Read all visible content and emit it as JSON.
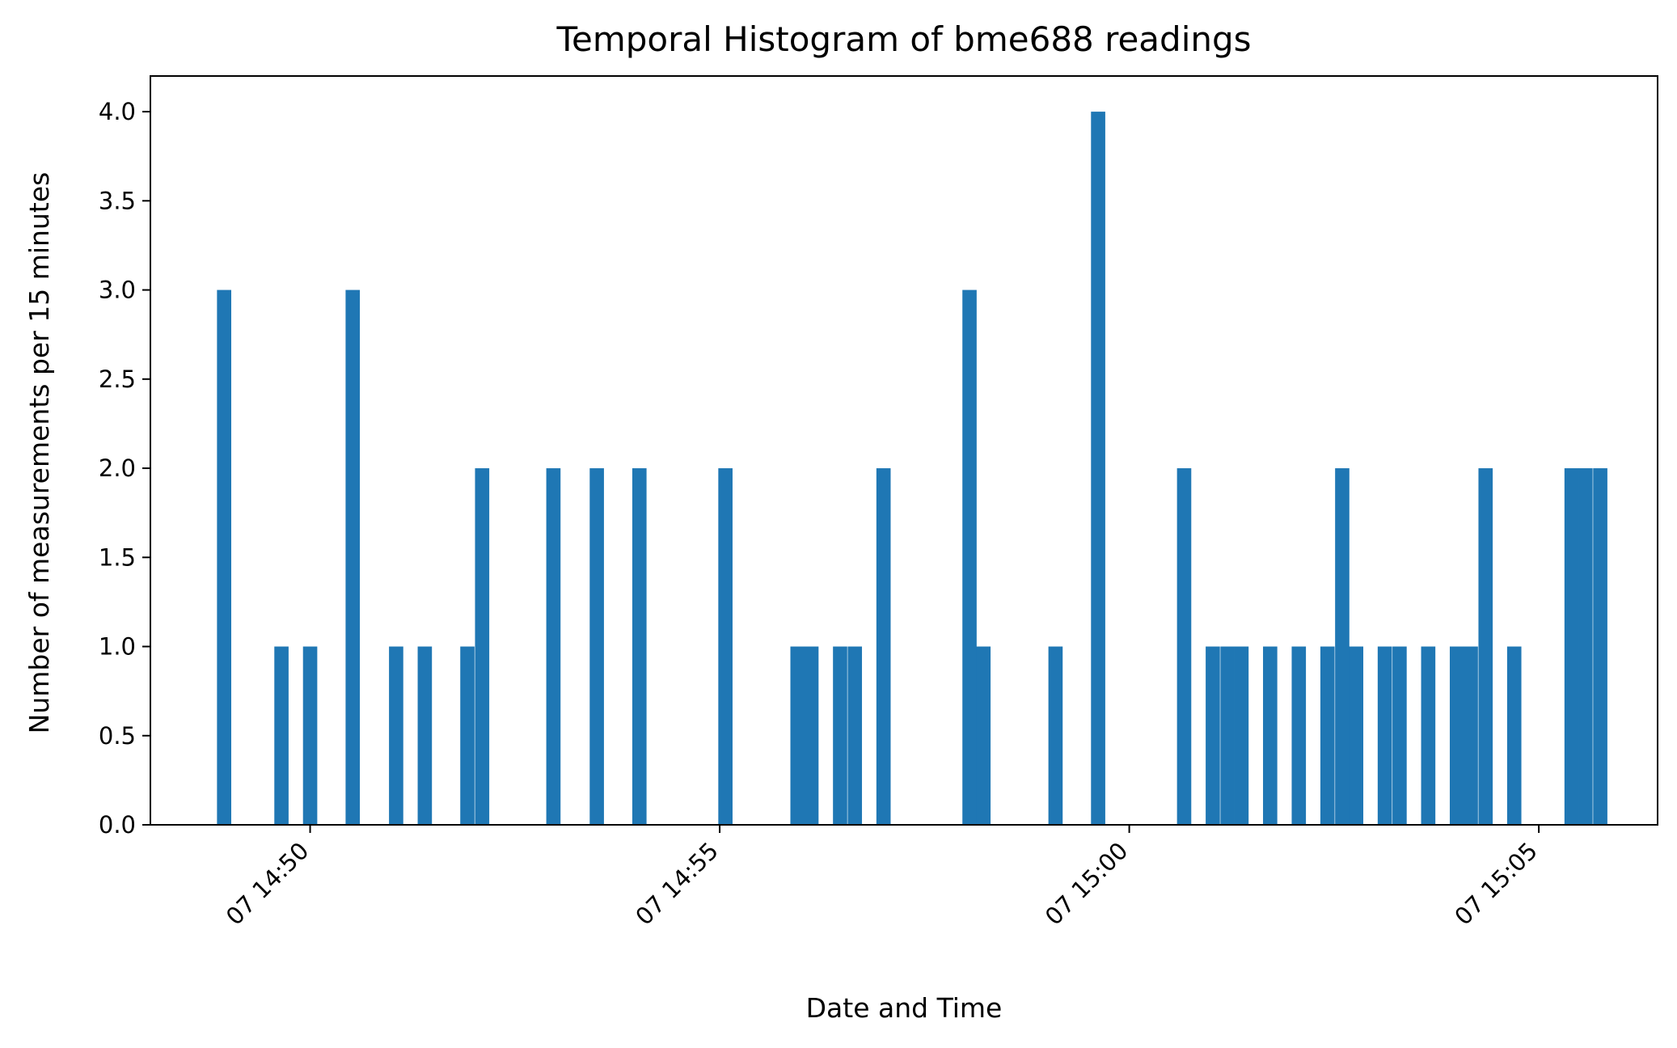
{
  "chart_data": {
    "type": "bar",
    "title": "Temporal Histogram of bme688 readings",
    "xlabel": "Date and Time",
    "ylabel": "Number of measurements per 15 minutes",
    "x_unit": "minutes past 14:50 (day 07)",
    "xlim": [
      -1.95,
      16.45
    ],
    "ylim": [
      0,
      4.2
    ],
    "yticks": [
      0.0,
      0.5,
      1.0,
      1.5,
      2.0,
      2.5,
      3.0,
      3.5,
      4.0
    ],
    "ytick_labels": [
      "0.0",
      "0.5",
      "1.0",
      "1.5",
      "2.0",
      "2.5",
      "3.0",
      "3.5",
      "4.0"
    ],
    "xticks": [
      0,
      5,
      10,
      15
    ],
    "xtick_labels": [
      "07 14:50",
      "07 14:55",
      "07 15:00",
      "07 15:05"
    ],
    "bar_width": 0.174,
    "grid": false,
    "color": "#1f77b4",
    "bars": [
      {
        "x": -1.05,
        "value": 3
      },
      {
        "x": -0.35,
        "value": 1
      },
      {
        "x": 0.0,
        "value": 1
      },
      {
        "x": 0.52,
        "value": 3
      },
      {
        "x": 1.05,
        "value": 1
      },
      {
        "x": 1.4,
        "value": 1
      },
      {
        "x": 1.92,
        "value": 1
      },
      {
        "x": 2.1,
        "value": 2
      },
      {
        "x": 2.97,
        "value": 2
      },
      {
        "x": 3.5,
        "value": 2
      },
      {
        "x": 4.02,
        "value": 2
      },
      {
        "x": 5.07,
        "value": 2
      },
      {
        "x": 5.95,
        "value": 1
      },
      {
        "x": 6.12,
        "value": 1
      },
      {
        "x": 6.47,
        "value": 1
      },
      {
        "x": 6.65,
        "value": 1
      },
      {
        "x": 7.0,
        "value": 2
      },
      {
        "x": 8.05,
        "value": 3
      },
      {
        "x": 8.22,
        "value": 1
      },
      {
        "x": 9.1,
        "value": 1
      },
      {
        "x": 9.62,
        "value": 4
      },
      {
        "x": 10.67,
        "value": 2
      },
      {
        "x": 11.02,
        "value": 1
      },
      {
        "x": 11.2,
        "value": 1
      },
      {
        "x": 11.37,
        "value": 1
      },
      {
        "x": 11.72,
        "value": 1
      },
      {
        "x": 12.07,
        "value": 1
      },
      {
        "x": 12.42,
        "value": 1
      },
      {
        "x": 12.6,
        "value": 2
      },
      {
        "x": 12.77,
        "value": 1
      },
      {
        "x": 13.12,
        "value": 1
      },
      {
        "x": 13.3,
        "value": 1
      },
      {
        "x": 13.65,
        "value": 1
      },
      {
        "x": 14.0,
        "value": 1
      },
      {
        "x": 14.17,
        "value": 1
      },
      {
        "x": 14.35,
        "value": 2
      },
      {
        "x": 14.7,
        "value": 1
      },
      {
        "x": 15.4,
        "value": 2
      },
      {
        "x": 15.57,
        "value": 2
      },
      {
        "x": 15.75,
        "value": 2
      }
    ]
  }
}
